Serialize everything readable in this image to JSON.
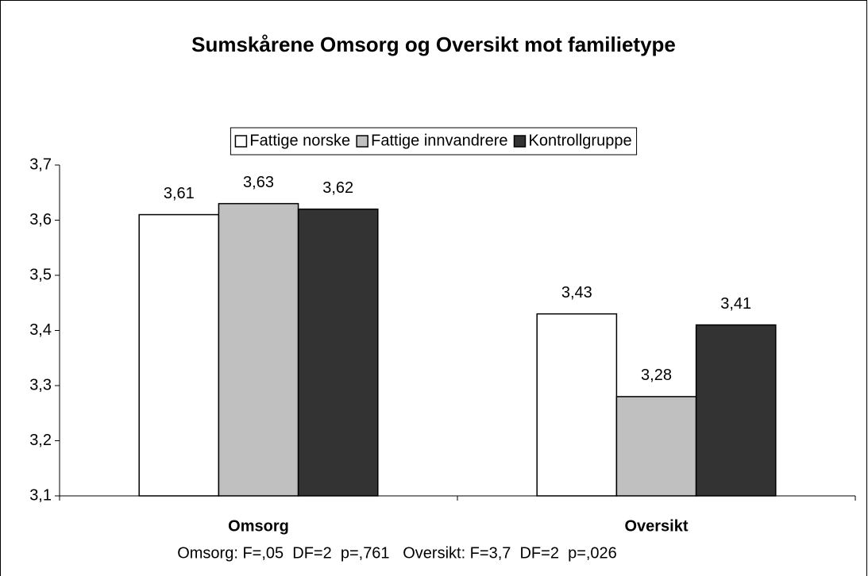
{
  "chart_data": {
    "type": "bar",
    "title": "Sumskårene Omsorg og Oversikt mot familietype",
    "categories": [
      "Omsorg",
      "Oversikt"
    ],
    "series": [
      {
        "name": "Fattige norske",
        "color": "#ffffff",
        "values": [
          3.61,
          3.43
        ],
        "value_labels": [
          "3,61",
          "3,43"
        ]
      },
      {
        "name": "Fattige innvandrere",
        "color": "#c0c0c0",
        "values": [
          3.63,
          3.28
        ],
        "value_labels": [
          "3,63",
          "3,28"
        ]
      },
      {
        "name": "Kontrollgruppe",
        "color": "#333333",
        "values": [
          3.62,
          3.41
        ],
        "value_labels": [
          "3,62",
          "3,41"
        ]
      }
    ],
    "ylim": [
      3.1,
      3.7
    ],
    "yticks": [
      {
        "value": 3.1,
        "label": "3,1"
      },
      {
        "value": 3.2,
        "label": "3,2"
      },
      {
        "value": 3.3,
        "label": "3,3"
      },
      {
        "value": 3.4,
        "label": "3,4"
      },
      {
        "value": 3.5,
        "label": "3,5"
      },
      {
        "value": 3.6,
        "label": "3,6"
      },
      {
        "value": 3.7,
        "label": "3,7"
      }
    ],
    "grid": false,
    "legend": "top",
    "annotation": "Omsorg: F=,05  DF=2  p=,761   Oversikt: F=3,7  DF=2  p=,026"
  }
}
